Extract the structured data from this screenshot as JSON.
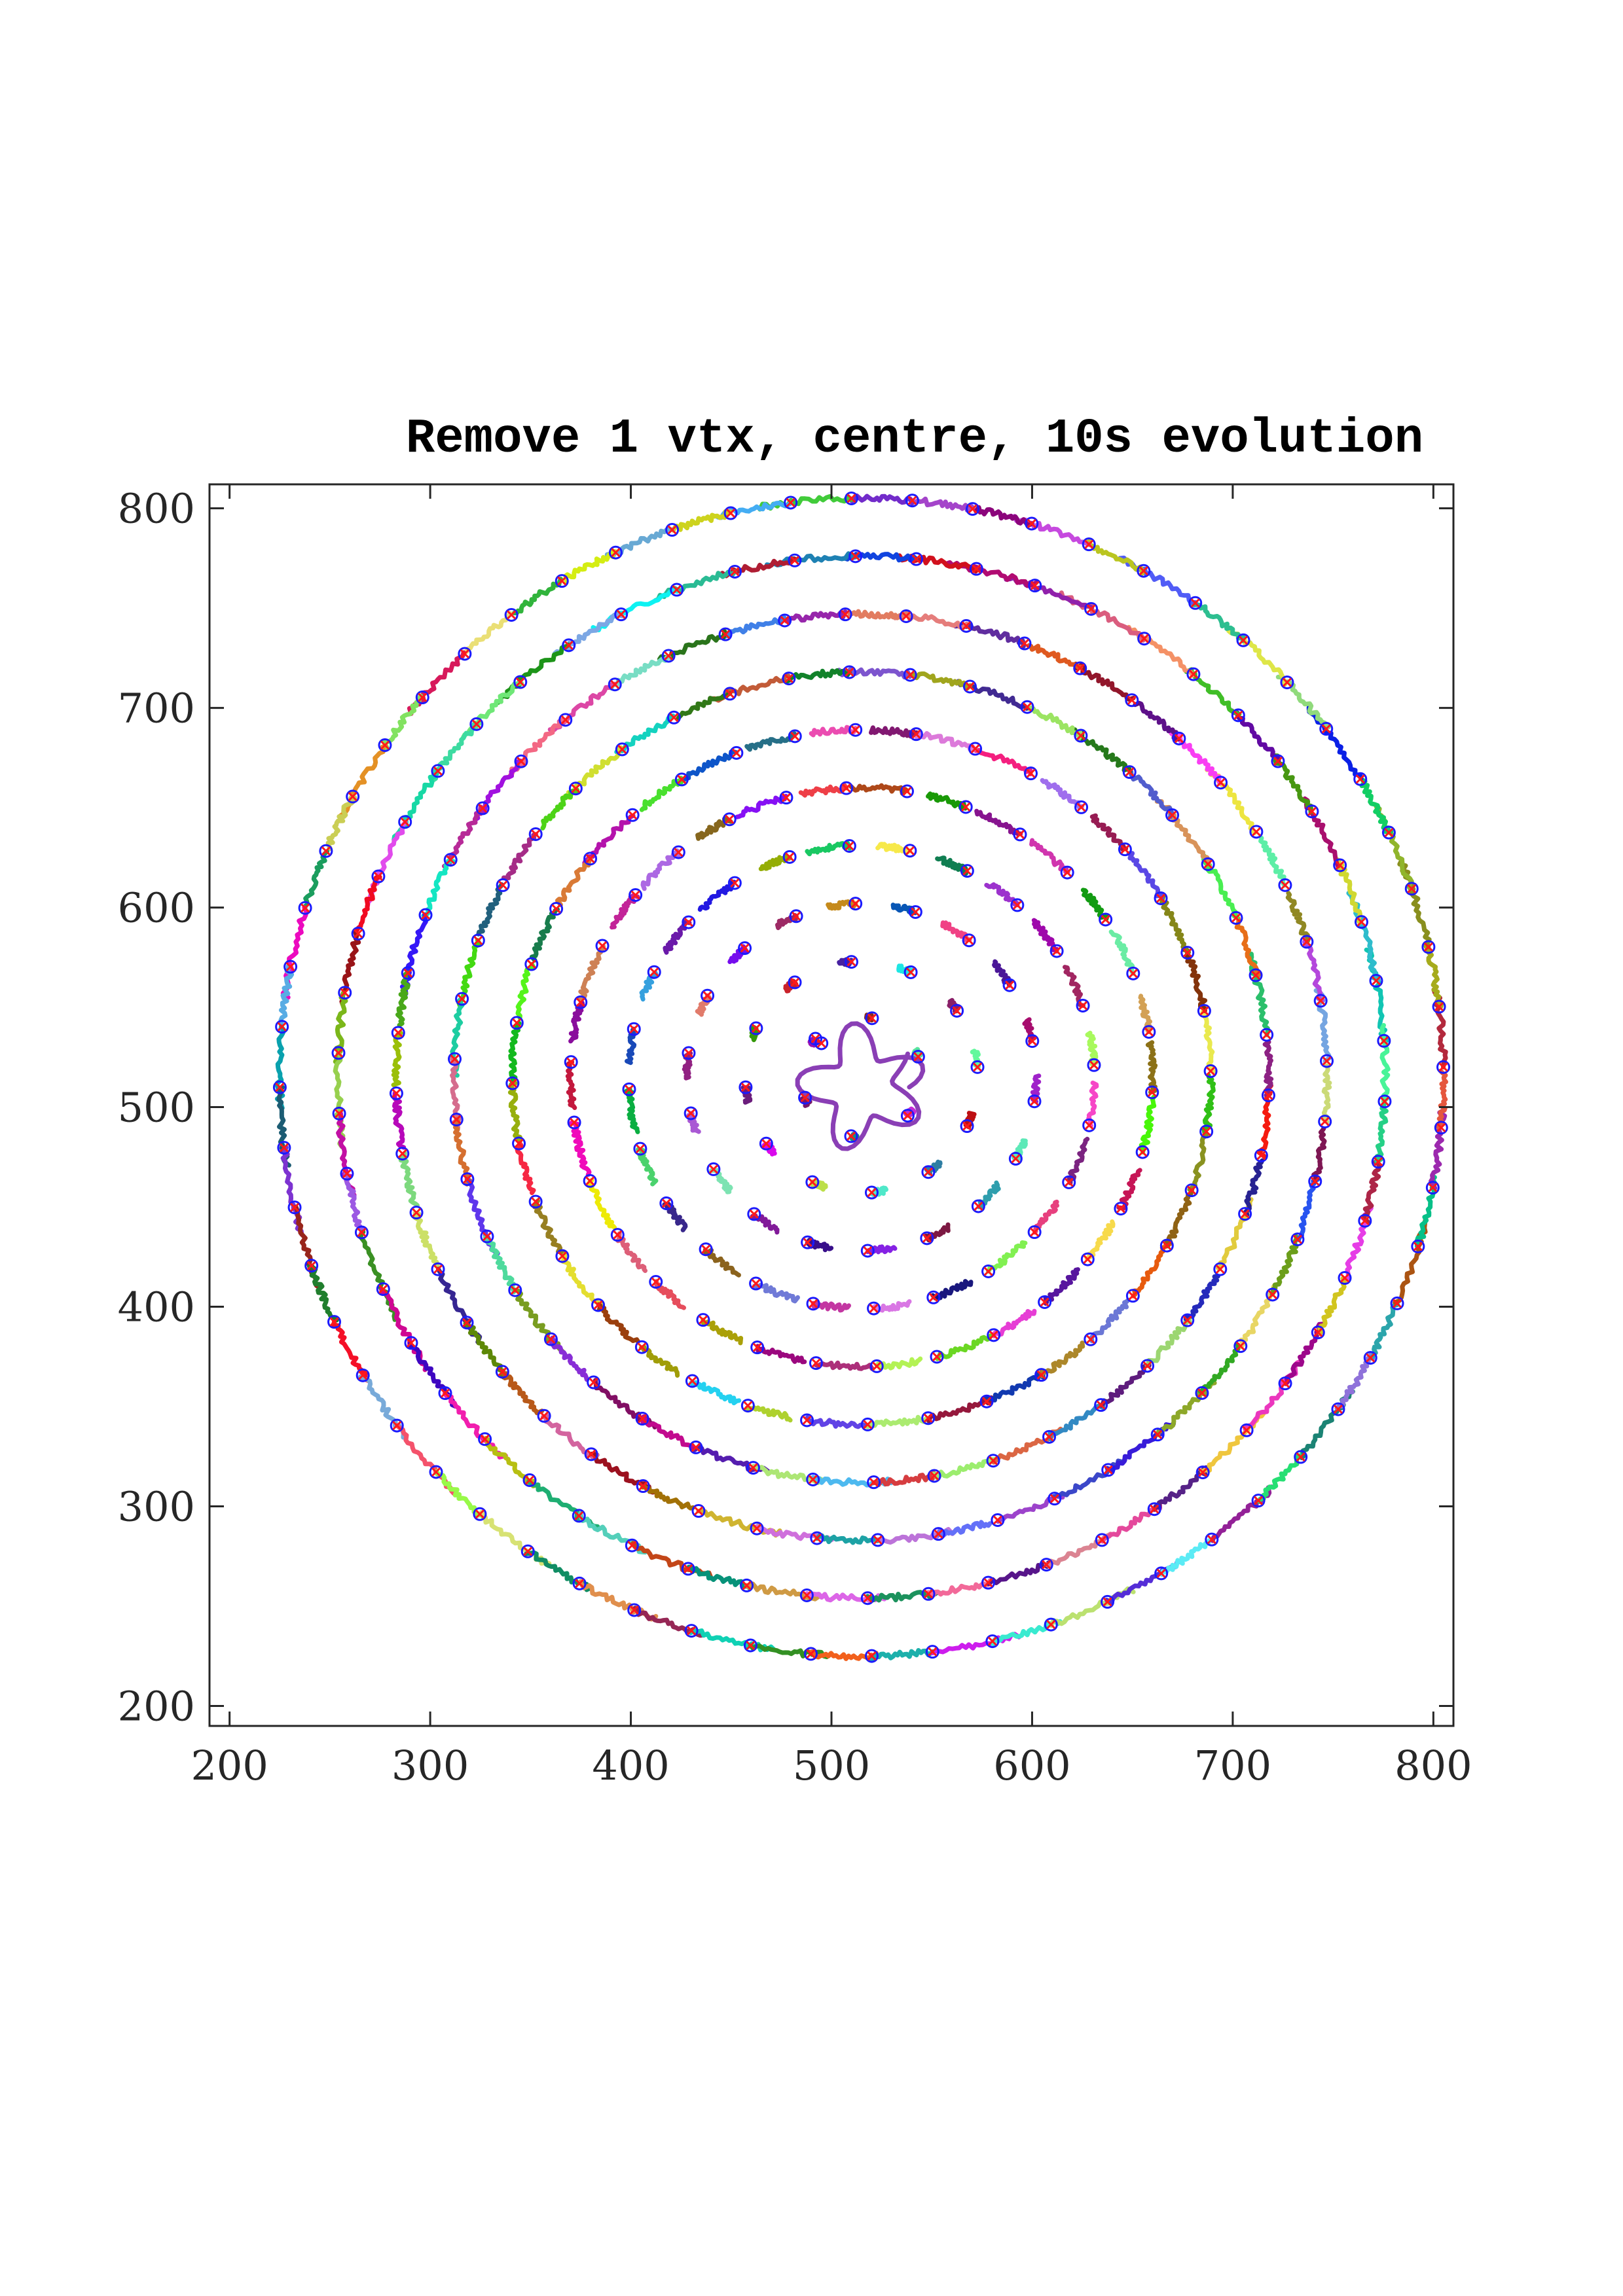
{
  "chart_data": {
    "type": "scatter",
    "title": "Remove 1 vtx, centre, 10s evolution",
    "xlabel": "",
    "ylabel": "",
    "xlim": [
      190,
      810
    ],
    "ylim": [
      190,
      812
    ],
    "xticks": [
      200,
      300,
      400,
      500,
      600,
      700,
      800
    ],
    "yticks": [
      200,
      300,
      400,
      500,
      600,
      700,
      800
    ],
    "xtick_labels": [
      "200",
      "300",
      "400",
      "500",
      "600",
      "700",
      "800"
    ],
    "ytick_labels": [
      "200",
      "300",
      "400",
      "500",
      "600",
      "700",
      "800"
    ],
    "grid": false,
    "legend": "none",
    "marker_colors": {
      "circle": "#1a1aff",
      "cross": "#ff1a1a"
    },
    "centre": [
      515,
      515
    ],
    "rings": [
      {
        "radius": 30,
        "count": 6,
        "start_angle_deg": 20,
        "track_deg": 6
      },
      {
        "radius": 58,
        "count": 12,
        "start_angle_deg": 5,
        "track_deg": 7
      },
      {
        "radius": 87,
        "count": 18,
        "start_angle_deg": 12,
        "track_deg": 8
      },
      {
        "radius": 116,
        "count": 24,
        "start_angle_deg": 3,
        "track_deg": 9
      },
      {
        "radius": 145,
        "count": 30,
        "start_angle_deg": 9,
        "track_deg": 9
      },
      {
        "radius": 174,
        "count": 36,
        "start_angle_deg": 1,
        "track_deg": 9
      },
      {
        "radius": 203,
        "count": 42,
        "start_angle_deg": 6,
        "track_deg": 9
      },
      {
        "radius": 232,
        "count": 48,
        "start_angle_deg": 2,
        "track_deg": 8
      },
      {
        "radius": 261,
        "count": 54,
        "start_angle_deg": 4,
        "track_deg": 8
      },
      {
        "radius": 290,
        "count": 60,
        "start_angle_deg": 1,
        "track_deg": 7
      }
    ],
    "central_vortex": {
      "x": 515,
      "y": 510,
      "radius": 28
    }
  }
}
